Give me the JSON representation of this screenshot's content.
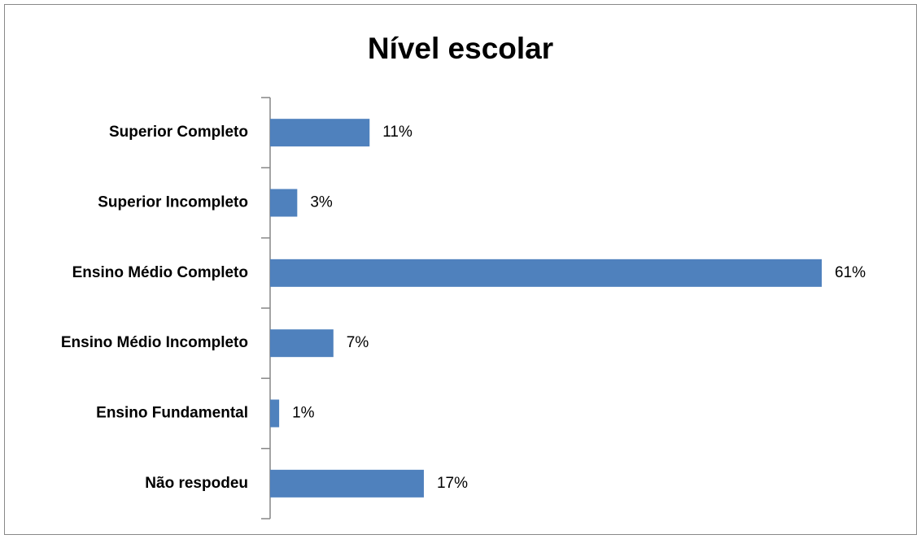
{
  "chart_data": {
    "type": "bar",
    "orientation": "horizontal",
    "title": "Nível escolar",
    "categories": [
      "Superior Completo",
      "Superior Incompleto",
      "Ensino Médio Completo",
      "Ensino Médio Incompleto",
      "Ensino Fundamental",
      "Não respodeu"
    ],
    "values": [
      11,
      3,
      61,
      7,
      1,
      17
    ],
    "value_labels": [
      "11%",
      "3%",
      "61%",
      "7%",
      "1%",
      "17%"
    ],
    "color": "#4f81bd"
  }
}
